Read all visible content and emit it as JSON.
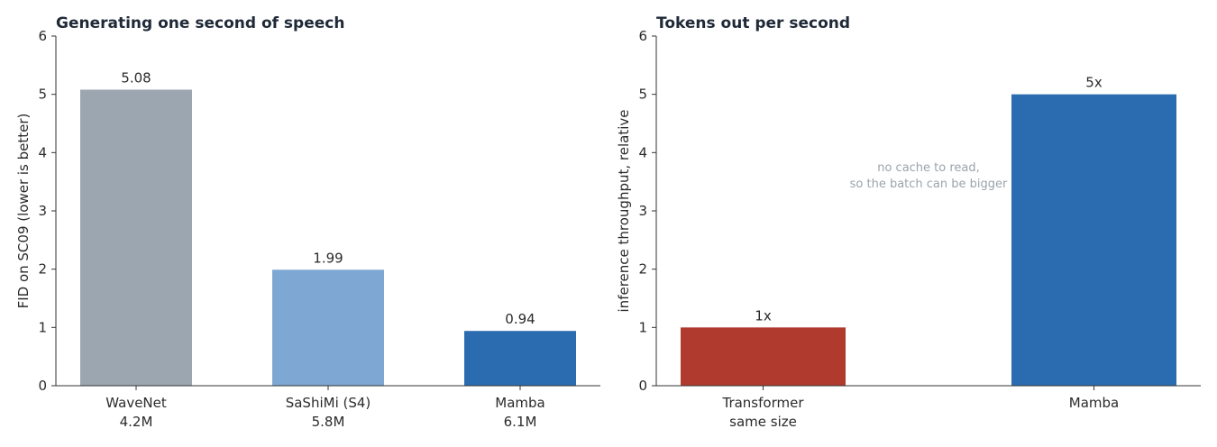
{
  "chart_data": [
    {
      "type": "bar",
      "title": "Generating one second of speech",
      "ylabel": "FID on SC09 (lower is better)",
      "ylim": [
        0,
        6
      ],
      "yticks": [
        0,
        1,
        2,
        3,
        4,
        5,
        6
      ],
      "categories": [
        [
          "WaveNet",
          "4.2M"
        ],
        [
          "SaShiMi (S4)",
          "5.8M"
        ],
        [
          "Mamba",
          "6.1M"
        ]
      ],
      "values": [
        5.08,
        1.99,
        0.94
      ],
      "data_labels": [
        "5.08",
        "1.99",
        "0.94"
      ],
      "colors": [
        "#9ca6b1",
        "#7fa7d4",
        "#2b6cb0"
      ],
      "grid": false
    },
    {
      "type": "bar",
      "title": "Tokens out per second",
      "ylabel": "inference throughput, relative",
      "ylim": [
        0,
        6
      ],
      "yticks": [
        0,
        1,
        2,
        3,
        4,
        5,
        6
      ],
      "categories": [
        [
          "Transformer",
          "same size"
        ],
        [
          "Mamba"
        ]
      ],
      "values": [
        1,
        5
      ],
      "data_labels": [
        "1x",
        "5x"
      ],
      "colors": [
        "#b03a2e",
        "#2b6cb0"
      ],
      "annotation": [
        "no cache to read,",
        "so the batch can be bigger"
      ],
      "grid": false
    }
  ]
}
